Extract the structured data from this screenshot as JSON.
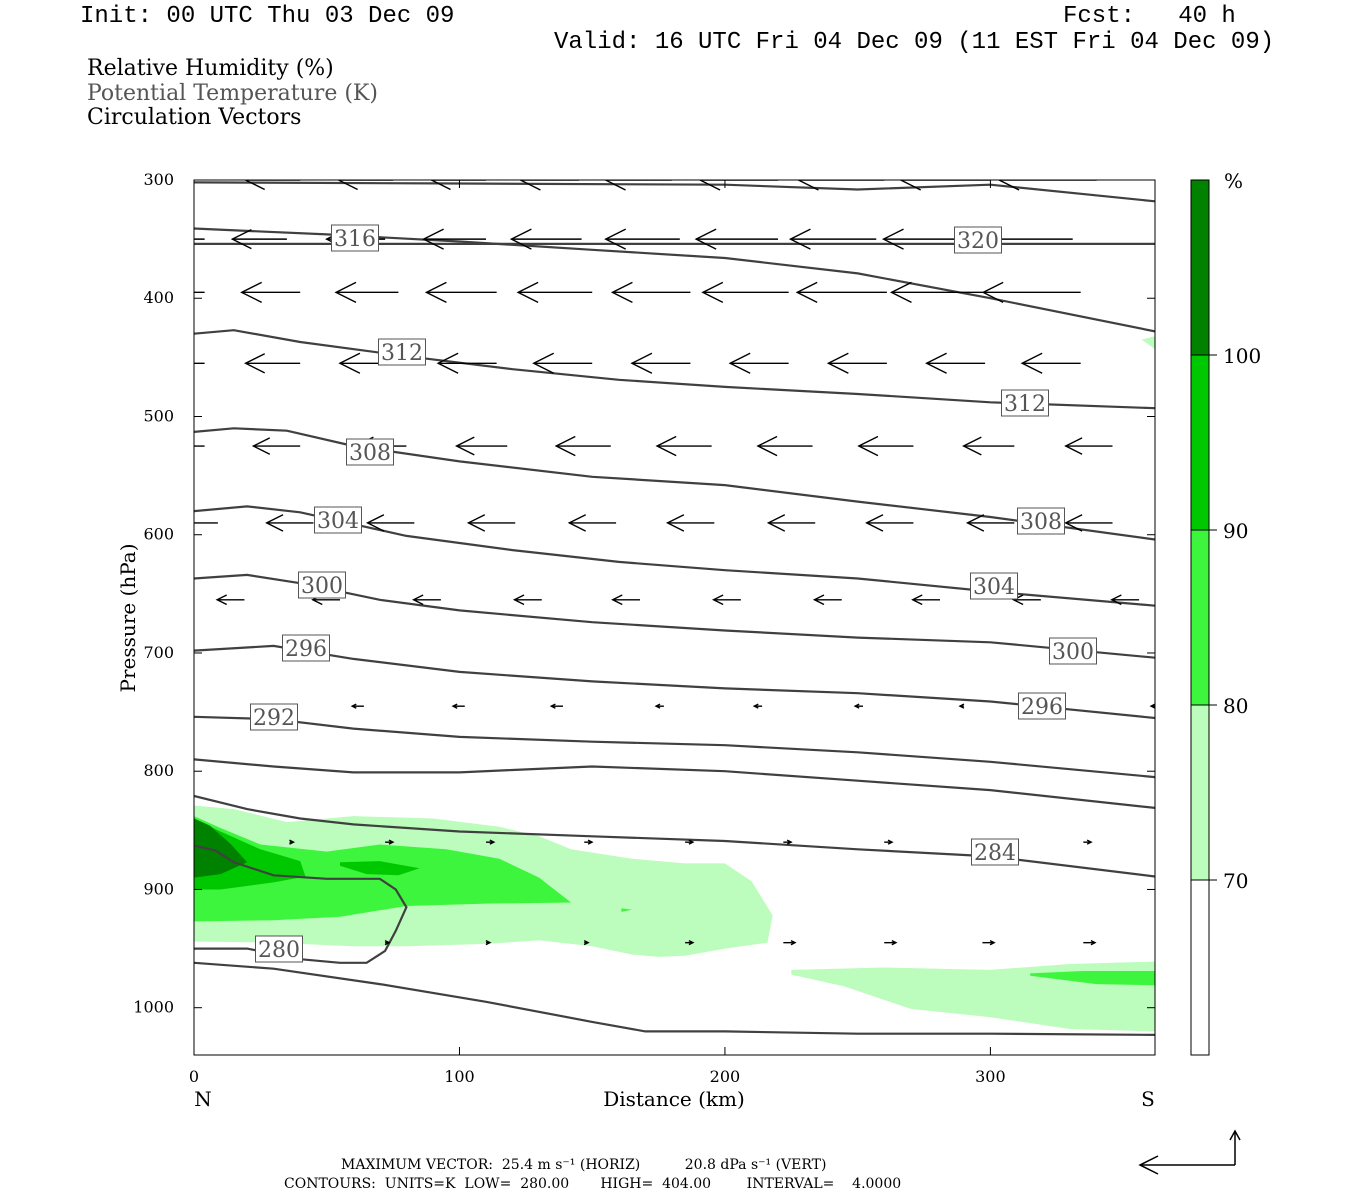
{
  "header": {
    "init": "Init: 00 UTC Thu 03 Dec 09",
    "fcst": "Fcst:   40 h",
    "valid": "Valid: 16 UTC Fri 04 Dec 09 (11 EST Fri 04 Dec 09)",
    "field1": "Relative Humidity (%)",
    "field2": "Potential Temperature (K)",
    "field3": "Circulation Vectors"
  },
  "chart_data": {
    "type": "cross-section",
    "xlabel": "Distance (km)",
    "ylabel": "Pressure (hPa)",
    "xlim": [
      0,
      362
    ],
    "ylim": [
      1040,
      300
    ],
    "xticks": [
      0,
      100,
      200,
      300
    ],
    "yticks": [
      300,
      400,
      500,
      600,
      700,
      800,
      900,
      1000
    ],
    "x_end_labels": {
      "left": "N",
      "right": "S"
    },
    "rh_colorbar": {
      "unit": "%",
      "levels": [
        70,
        80,
        90,
        100
      ],
      "colors": [
        "#ffffff",
        "#bcfcbc",
        "#3cf53c",
        "#00c800",
        "#008200"
      ]
    },
    "theta_contours": [
      {
        "value": 316,
        "label": "316",
        "points": [
          [
            0,
            341
          ],
          [
            50,
            346
          ],
          [
            100,
            352
          ],
          [
            150,
            359
          ],
          [
            200,
            366
          ],
          [
            250,
            379
          ],
          [
            300,
            400
          ],
          [
            362,
            428
          ]
        ]
      },
      {
        "value": 316,
        "label": "",
        "points": [
          [
            0,
            302
          ],
          [
            100,
            303
          ],
          [
            200,
            304
          ],
          [
            250,
            308
          ],
          [
            300,
            304
          ],
          [
            362,
            318
          ]
        ]
      },
      {
        "value": 320,
        "label": "320",
        "points": [
          [
            0,
            354
          ],
          [
            362,
            354
          ]
        ]
      },
      {
        "value": 312,
        "label": "312",
        "points": [
          [
            0,
            430
          ],
          [
            15,
            427
          ],
          [
            40,
            437
          ],
          [
            80,
            449
          ],
          [
            120,
            460
          ],
          [
            160,
            469
          ],
          [
            200,
            475
          ],
          [
            250,
            481
          ],
          [
            300,
            488
          ],
          [
            362,
            493
          ]
        ]
      },
      {
        "value": 308,
        "label": "308",
        "points": [
          [
            0,
            513
          ],
          [
            15,
            510
          ],
          [
            35,
            512
          ],
          [
            60,
            525
          ],
          [
            100,
            538
          ],
          [
            150,
            551
          ],
          [
            200,
            558
          ],
          [
            250,
            572
          ],
          [
            300,
            585
          ],
          [
            362,
            604
          ]
        ]
      },
      {
        "value": 304,
        "label": "304",
        "points": [
          [
            0,
            580
          ],
          [
            20,
            576
          ],
          [
            40,
            581
          ],
          [
            80,
            601
          ],
          [
            120,
            613
          ],
          [
            160,
            623
          ],
          [
            200,
            630
          ],
          [
            250,
            637
          ],
          [
            300,
            648
          ],
          [
            362,
            660
          ]
        ]
      },
      {
        "value": 300,
        "label": "300",
        "points": [
          [
            0,
            637
          ],
          [
            20,
            634
          ],
          [
            40,
            641
          ],
          [
            70,
            655
          ],
          [
            100,
            664
          ],
          [
            150,
            674
          ],
          [
            200,
            681
          ],
          [
            250,
            687
          ],
          [
            300,
            691
          ],
          [
            362,
            704
          ]
        ]
      },
      {
        "value": 296,
        "label": "296",
        "points": [
          [
            0,
            698
          ],
          [
            30,
            694
          ],
          [
            60,
            705
          ],
          [
            100,
            716
          ],
          [
            150,
            724
          ],
          [
            200,
            730
          ],
          [
            250,
            734
          ],
          [
            300,
            741
          ],
          [
            362,
            755
          ]
        ]
      },
      {
        "value": 292,
        "label": "292",
        "points": [
          [
            0,
            754
          ],
          [
            30,
            756
          ],
          [
            60,
            764
          ],
          [
            100,
            771
          ],
          [
            150,
            775
          ],
          [
            200,
            778
          ],
          [
            250,
            784
          ],
          [
            300,
            792
          ],
          [
            362,
            805
          ]
        ]
      },
      {
        "value": 288,
        "label": "",
        "points": [
          [
            0,
            790
          ],
          [
            30,
            796
          ],
          [
            60,
            801
          ],
          [
            100,
            801
          ],
          [
            120,
            799
          ],
          [
            150,
            796
          ],
          [
            200,
            800
          ],
          [
            250,
            808
          ],
          [
            300,
            816
          ],
          [
            362,
            831
          ]
        ]
      },
      {
        "value": 284,
        "label": "284",
        "points": [
          [
            0,
            821
          ],
          [
            20,
            832
          ],
          [
            40,
            840
          ],
          [
            60,
            845
          ],
          [
            100,
            851
          ],
          [
            150,
            855
          ],
          [
            200,
            859
          ],
          [
            250,
            866
          ],
          [
            300,
            872
          ],
          [
            362,
            889
          ]
        ]
      },
      {
        "value": 280,
        "label": "280",
        "points": [
          [
            0,
            950
          ],
          [
            20,
            950
          ],
          [
            40,
            959
          ],
          [
            55,
            962
          ],
          [
            65,
            962
          ],
          [
            72,
            952
          ],
          [
            76,
            935
          ],
          [
            80,
            915
          ],
          [
            76,
            900
          ],
          [
            70,
            891
          ],
          [
            50,
            891
          ],
          [
            30,
            888
          ],
          [
            15,
            877
          ],
          [
            8,
            867
          ],
          [
            0,
            863
          ]
        ]
      },
      {
        "value": 276,
        "label": "",
        "points": [
          [
            0,
            962
          ],
          [
            30,
            967
          ],
          [
            70,
            980
          ],
          [
            110,
            995
          ],
          [
            150,
            1012
          ],
          [
            170,
            1020
          ],
          [
            200,
            1020
          ],
          [
            250,
            1022
          ],
          [
            300,
            1022
          ],
          [
            362,
            1023
          ]
        ]
      }
    ],
    "vectors_h_ms": [
      {
        "p": 300,
        "x": [
          0,
          40,
          75,
          110,
          145,
          180,
          220,
          260,
          300,
          340
        ],
        "u": [
          -14,
          -14,
          -14,
          -14,
          -15,
          -17,
          -20,
          -22,
          -23,
          -25
        ]
      },
      {
        "p": 350,
        "x": [
          4,
          35,
          72,
          110,
          146,
          183,
          220,
          257,
          295,
          331
        ],
        "u": [
          -14,
          -14,
          -15,
          -16,
          -18,
          -19,
          -21,
          -22,
          -24,
          -25
        ]
      },
      {
        "p": 395,
        "x": [
          4,
          40,
          77,
          114,
          150,
          187,
          224,
          261,
          298,
          334
        ],
        "u": [
          -14,
          -15,
          -16,
          -18,
          -19,
          -20,
          -22,
          -23,
          -24,
          -25
        ]
      },
      {
        "p": 455,
        "x": [
          4,
          40,
          77,
          114,
          150,
          187,
          224,
          261,
          298,
          334
        ],
        "u": [
          -14,
          -14,
          -15,
          -15,
          -15,
          -15,
          -15,
          -15,
          -15,
          -15
        ]
      },
      {
        "p": 525,
        "x": [
          4,
          40,
          80,
          118,
          157,
          195,
          233,
          271,
          309,
          346
        ],
        "u": [
          -12,
          -12,
          -13,
          -13,
          -14,
          -14,
          -14,
          -14,
          -13,
          -12
        ]
      },
      {
        "p": 590,
        "x": [
          9,
          45,
          83,
          121,
          159,
          196,
          234,
          271,
          309,
          346
        ],
        "u": [
          -12,
          -12,
          -12,
          -12,
          -12,
          -12,
          -12,
          -12,
          -12,
          -12
        ]
      },
      {
        "p": 655,
        "x": [
          19,
          55,
          93,
          131,
          168,
          206,
          244,
          281,
          319,
          356
        ],
        "u": [
          -7,
          -7,
          -7,
          -7,
          -7,
          -7,
          -7,
          -7,
          -7,
          -7
        ]
      },
      {
        "p": 745,
        "x": [
          28,
          64,
          102,
          139,
          177,
          214,
          252,
          290,
          327,
          362
        ],
        "u": [
          -3,
          -3,
          -3,
          -3,
          -2,
          -2,
          -2,
          -1,
          -1,
          -1
        ]
      },
      {
        "p": 860,
        "x": [
          36,
          72,
          110,
          147,
          185,
          222,
          260,
          297,
          335,
          362
        ],
        "u": [
          1,
          2,
          2,
          2,
          2,
          2,
          2,
          2,
          2,
          2
        ]
      },
      {
        "p": 945,
        "x": [
          72,
          110,
          147,
          185,
          222,
          260,
          297,
          335
        ],
        "u": [
          1,
          1,
          1,
          2,
          3,
          3,
          3,
          3
        ]
      }
    ],
    "max_vector_horiz": "25.4 m s-1",
    "max_vector_vert": "20.8 dPa s-1"
  },
  "footer": {
    "max_vector_line": "MAXIMUM VECTOR:  25.4 m s⁻¹ (HORIZ)          20.8 dPa s⁻¹ (VERT)",
    "contours_line": "CONTOURS:  UNITS=K  LOW=  280.00       HIGH=  404.00        INTERVAL=    4.0000"
  }
}
